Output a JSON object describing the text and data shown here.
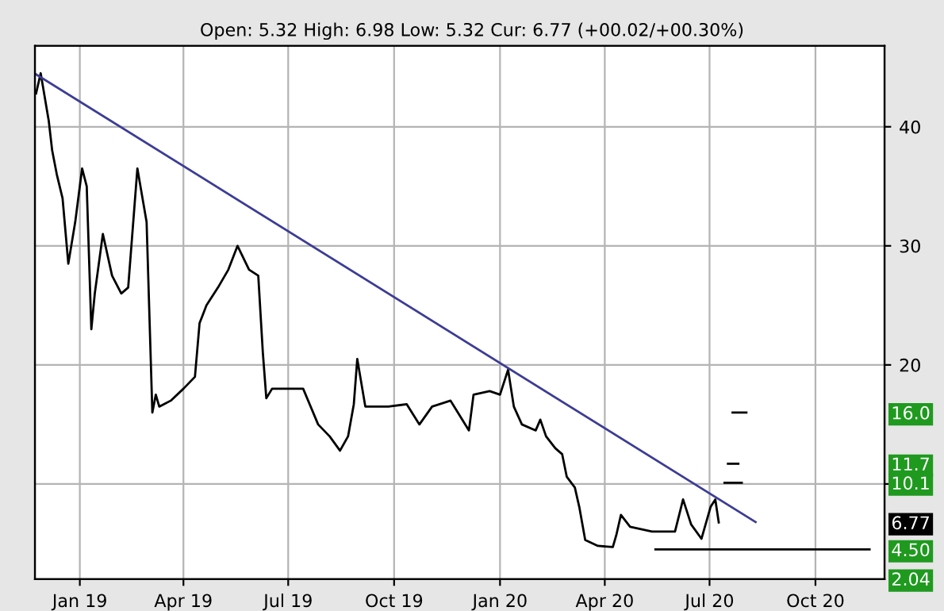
{
  "chart_data": {
    "type": "line",
    "subtitle": "Open: 5.32 High: 6.98 Low: 5.32 Cur: 6.77 (+00.02/+00.30%)",
    "series": [
      {
        "color": "#000000",
        "x": [
          "2018-11-24",
          "2018-11-28",
          "2018-12-05",
          "2018-12-08",
          "2018-12-12",
          "2018-12-17",
          "2018-12-22",
          "2018-12-28",
          "2019-01-03",
          "2019-01-07",
          "2019-01-11",
          "2019-01-14",
          "2019-01-21",
          "2019-01-29",
          "2019-02-06",
          "2019-02-12",
          "2019-02-20",
          "2019-02-28",
          "2019-03-05",
          "2019-03-08",
          "2019-03-11",
          "2019-03-21",
          "2019-04-01",
          "2019-04-11",
          "2019-04-15",
          "2019-04-21",
          "2019-05-01",
          "2019-05-10",
          "2019-05-18",
          "2019-05-28",
          "2019-06-05",
          "2019-06-09",
          "2019-06-12",
          "2019-06-17",
          "2019-06-30",
          "2019-07-14",
          "2019-07-27",
          "2019-08-06",
          "2019-08-15",
          "2019-08-22",
          "2019-08-27",
          "2019-08-30",
          "2019-09-06",
          "2019-09-26",
          "2019-10-12",
          "2019-10-23",
          "2019-11-03",
          "2019-11-19",
          "2019-12-05",
          "2019-12-09",
          "2019-12-23",
          "2020-01-01",
          "2020-01-08",
          "2020-01-13",
          "2020-01-20",
          "2020-02-01",
          "2020-02-05",
          "2020-02-10",
          "2020-02-18",
          "2020-02-24",
          "2020-02-28",
          "2020-03-06",
          "2020-03-10",
          "2020-03-15",
          "2020-03-26",
          "2020-04-08",
          "2020-04-11",
          "2020-04-15",
          "2020-04-23",
          "2020-05-12",
          "2020-06-01",
          "2020-06-08",
          "2020-06-15",
          "2020-06-24",
          "2020-07-02",
          "2020-07-06",
          "2020-07-09"
        ],
        "values": [
          42.8,
          44.5,
          40.5,
          38,
          36,
          34,
          28.5,
          32,
          36.5,
          35,
          23,
          26,
          31,
          27.5,
          26,
          26.5,
          36.5,
          32,
          16,
          17.5,
          16.5,
          17,
          18,
          19,
          23.5,
          25,
          26.5,
          28,
          30,
          28,
          27.5,
          21,
          17.2,
          18,
          18,
          18,
          15,
          14,
          12.8,
          14,
          16.7,
          20.5,
          16.5,
          16.5,
          16.7,
          15,
          16.5,
          17,
          14.5,
          17.5,
          17.8,
          17.5,
          19.6,
          16.5,
          15,
          14.5,
          15.4,
          14,
          13,
          12.5,
          10.6,
          9.7,
          8,
          5.3,
          4.8,
          4.7,
          5.7,
          7.4,
          6.4,
          6,
          6,
          8.7,
          6.6,
          5.4,
          8.1,
          8.7,
          6.77
        ]
      },
      {
        "color": "#3c3c96",
        "x": [
          "2018-11-24",
          "2020-08-10"
        ],
        "values": [
          44.4,
          6.8
        ]
      },
      {
        "color": "#000000",
        "x": [
          "2020-05-15",
          "2020-11-17"
        ],
        "values": [
          4.5,
          4.5
        ]
      },
      {
        "color": "#000000",
        "x": [
          "2020-07-21",
          "2020-08-02"
        ],
        "values": [
          16.0,
          16.0
        ]
      },
      {
        "color": "#000000",
        "x": [
          "2020-07-17",
          "2020-07-26"
        ],
        "values": [
          11.7,
          11.7
        ]
      },
      {
        "color": "#000000",
        "x": [
          "2020-07-14",
          "2020-07-29"
        ],
        "values": [
          10.1,
          10.1
        ]
      }
    ],
    "y2lim": [
      2.0,
      46.8
    ],
    "y2ticks": [
      {
        "value": 16.0,
        "label": "16.0"
      },
      {
        "value": 11.7,
        "label": "11.7"
      },
      {
        "value": 10.1,
        "label": "10.1"
      },
      {
        "value": 6.77,
        "label": "6.77"
      },
      {
        "value": 4.5,
        "label": "4.50"
      },
      {
        "value": 2.04,
        "label": "2.04"
      }
    ],
    "xlim": [
      "2018-11-23",
      "2020-11-30"
    ],
    "xticks": [
      {
        "value": "2019-01-01",
        "label": "Jan 19"
      },
      {
        "value": "2019-04-01",
        "label": "Apr 19"
      },
      {
        "value": "2019-07-01",
        "label": "Jul 19"
      },
      {
        "value": "2019-10-01",
        "label": "Oct 19"
      },
      {
        "value": "2020-01-01",
        "label": "Jan 20"
      },
      {
        "value": "2020-04-01",
        "label": "Apr 20"
      },
      {
        "value": "2020-07-01",
        "label": "Jul 20"
      },
      {
        "value": "2020-10-01",
        "label": "Oct 20"
      }
    ],
    "ylim": [
      2.0,
      46.8
    ],
    "yticks": [
      {
        "value": 10,
        "label": null
      },
      20,
      30,
      40
    ],
    "grid": true,
    "legend": false
  }
}
